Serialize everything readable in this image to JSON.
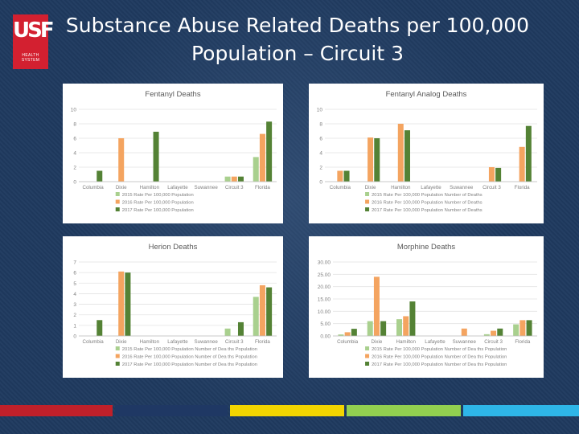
{
  "slide": {
    "title_line1": "Substance Abuse Related Deaths per 100,000",
    "title_line2": "Population – Circuit 3",
    "logo_text": "USF",
    "logo_sub_line1": "HEALTH",
    "logo_sub_line2": "SYSTEM",
    "colors": {
      "background": "#1f3a5f",
      "series_2015": "#a9d08e",
      "series_2016": "#f4a460",
      "series_2017": "#548235",
      "stripes": [
        "#c0202a",
        "#1f3864",
        "#f2d500",
        "#92d050",
        "#2eb6e8"
      ]
    }
  },
  "chart_data": [
    {
      "type": "bar",
      "title": "Fentanyl Deaths",
      "categories": [
        "Columbia",
        "Dixie",
        "Hamilton",
        "Lafayette",
        "Suwannee",
        "Circuit 3",
        "Florida"
      ],
      "ylim": [
        0,
        10
      ],
      "yticks": [
        "0",
        "2",
        "4",
        "6",
        "8",
        "10"
      ],
      "legend_position": "bottom",
      "series": [
        {
          "name": "2015 Rate Per 100,000 Population",
          "values": [
            0,
            0,
            0,
            0,
            0,
            0.7,
            3.4
          ]
        },
        {
          "name": "2016 Rate Per 100,000 Population",
          "values": [
            0,
            6.0,
            0,
            0,
            0,
            0.7,
            6.6
          ]
        },
        {
          "name": "2017 Rate Per 100,000 Population",
          "values": [
            1.5,
            0,
            6.9,
            0,
            0,
            0.7,
            8.3
          ]
        }
      ]
    },
    {
      "type": "bar",
      "title": "Fentanyl Analog Deaths",
      "categories": [
        "Columbia",
        "Dixie",
        "Hamilton",
        "Lafayette",
        "Suwannee",
        "Circuit 3",
        "Florida"
      ],
      "ylim": [
        0,
        10
      ],
      "yticks": [
        "0",
        "2",
        "4",
        "6",
        "8",
        "10"
      ],
      "legend_position": "bottom",
      "series": [
        {
          "name": "2015 Rate Per 100,000 Population Number of Deaths",
          "values": [
            0,
            0,
            0,
            0,
            0,
            0,
            0
          ]
        },
        {
          "name": "2016 Rate Per 100,000 Population Number of Deaths",
          "values": [
            1.5,
            6.1,
            8.0,
            0,
            0,
            2.0,
            4.8
          ]
        },
        {
          "name": "2017 Rate Per 100,000 Population Number of Deaths",
          "values": [
            1.5,
            6.0,
            7.1,
            0,
            0,
            1.9,
            7.7
          ]
        }
      ]
    },
    {
      "type": "bar",
      "title": "Herion Deaths",
      "categories": [
        "Columbia",
        "Dixie",
        "Hamilton",
        "Lafayette",
        "Suwannee",
        "Circuit 3",
        "Florida"
      ],
      "ylim": [
        0,
        7
      ],
      "yticks": [
        "0",
        "1",
        "2",
        "3",
        "4",
        "5",
        "6",
        "7"
      ],
      "legend_position": "bottom",
      "series": [
        {
          "name": "2015 Rate Per 100,000 Population Number of Dea ths Population",
          "values": [
            0,
            0,
            0,
            0,
            0,
            0.7,
            3.7
          ]
        },
        {
          "name": "2016 Rate Per 100,000 Population Number of Dea ths Population",
          "values": [
            0,
            6.1,
            0,
            0,
            0,
            0,
            4.8
          ]
        },
        {
          "name": "2017 Rate Per 100,000 Population Number of Dea ths Population",
          "values": [
            1.5,
            6.0,
            0,
            0,
            0,
            1.3,
            4.6
          ]
        }
      ]
    },
    {
      "type": "bar",
      "title": "Morphine Deaths",
      "categories": [
        "Columbia",
        "Dixie",
        "Hamilton",
        "Lafayette",
        "Suwannee",
        "Circuit 3",
        "Florida"
      ],
      "ylim": [
        0,
        30
      ],
      "yticks": [
        "0.00",
        "5.00",
        "10.00",
        "15.00",
        "20.00",
        "25.00",
        "30.00"
      ],
      "legend_position": "bottom",
      "series": [
        {
          "name": "2015 Rate Per 100,000 Population Number of Dea ths Population",
          "values": [
            0.6,
            6.0,
            6.8,
            0,
            0,
            0.7,
            4.7
          ]
        },
        {
          "name": "2016 Rate Per 100,000 Population Number of Dea ths Population",
          "values": [
            1.5,
            24.0,
            8.0,
            0,
            3.0,
            2.1,
            6.4
          ]
        },
        {
          "name": "2017 Rate Per 100,000 Population Number of Dea ths Population",
          "values": [
            2.9,
            6.0,
            14.0,
            0,
            0,
            3.0,
            6.4
          ]
        }
      ]
    }
  ]
}
